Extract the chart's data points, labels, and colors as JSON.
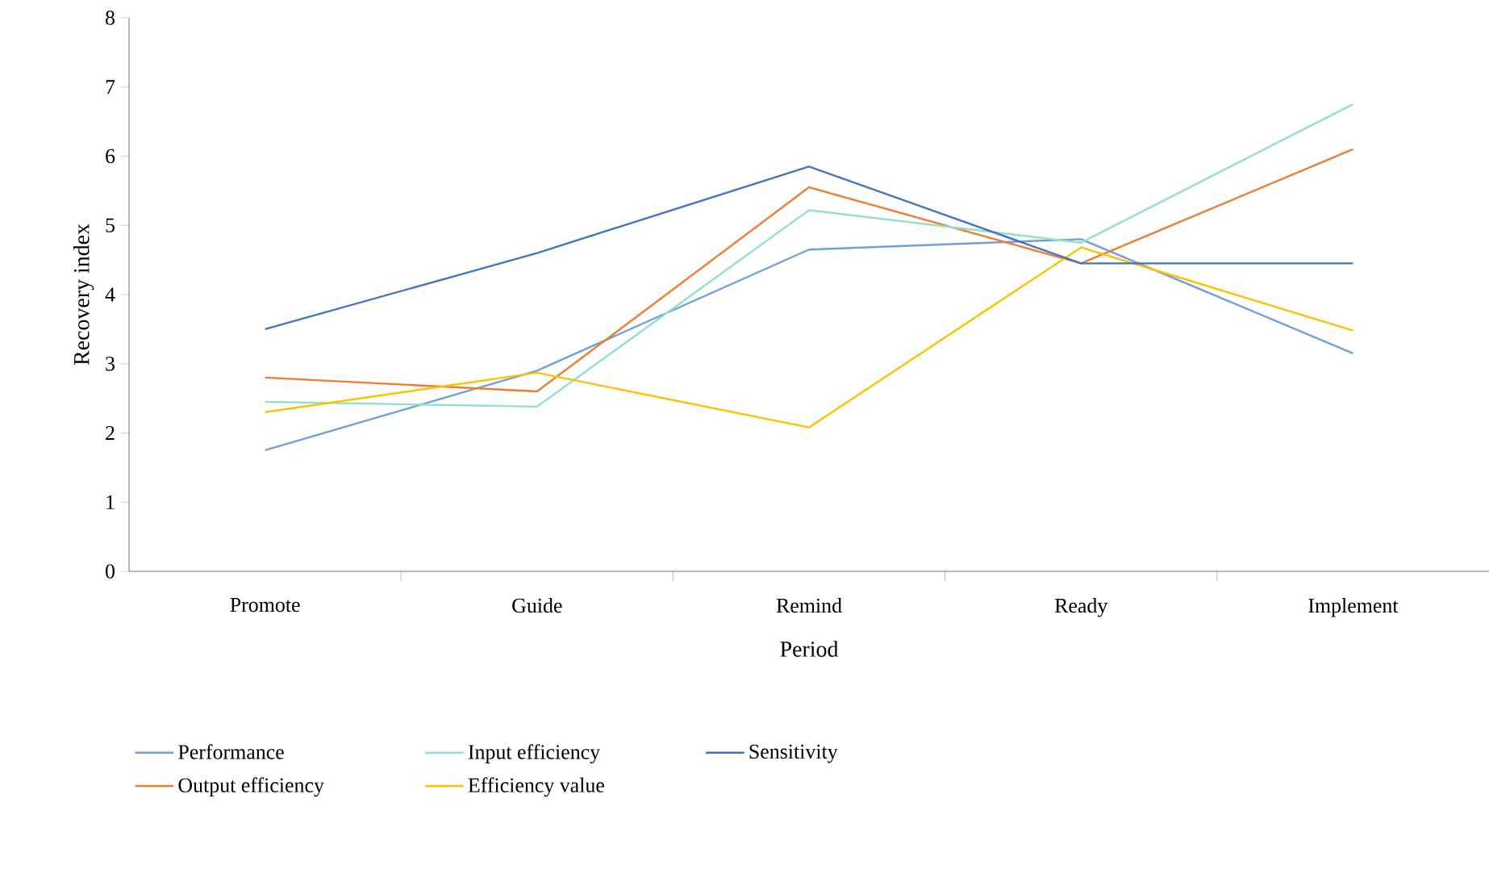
{
  "chart_data": {
    "type": "line",
    "xlabel": "Period",
    "ylabel": "Recovery index",
    "categories": [
      "Promote",
      "Guide",
      "Remind",
      "Ready",
      "Implement"
    ],
    "series": [
      {
        "name": "Performance",
        "color": "#6fa0dc",
        "values": [
          1.75,
          2.9,
          4.65,
          4.8,
          3.15
        ]
      },
      {
        "name": "Output efficiency",
        "color": "#ed7d31",
        "values": [
          2.8,
          2.6,
          5.55,
          4.45,
          6.1
        ]
      },
      {
        "name": "Input efficiency",
        "color": "#91e0c8",
        "values": [
          2.45,
          2.38,
          5.22,
          4.75,
          6.75
        ]
      },
      {
        "name": "Efficiency value",
        "color": "#ffc000",
        "values": [
          2.3,
          2.87,
          2.08,
          4.68,
          3.48
        ]
      },
      {
        "name": "Sensitivity",
        "color": "#4472c4",
        "values": [
          3.5,
          4.6,
          5.85,
          4.45,
          4.45
        ]
      }
    ],
    "ylim": [
      0,
      8
    ],
    "yticks": [
      0,
      1,
      2,
      3,
      4,
      5,
      6,
      7,
      8
    ],
    "legend": "bottom",
    "grid": false,
    "marker": "none",
    "line_style": "solid"
  }
}
